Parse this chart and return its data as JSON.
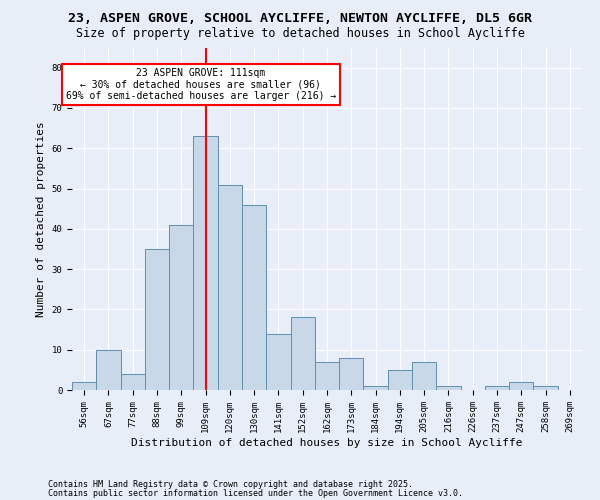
{
  "title_line1": "23, ASPEN GROVE, SCHOOL AYCLIFFE, NEWTON AYCLIFFE, DL5 6GR",
  "title_line2": "Size of property relative to detached houses in School Aycliffe",
  "xlabel": "Distribution of detached houses by size in School Aycliffe",
  "ylabel": "Number of detached properties",
  "categories": [
    "56sqm",
    "67sqm",
    "77sqm",
    "88sqm",
    "99sqm",
    "109sqm",
    "120sqm",
    "130sqm",
    "141sqm",
    "152sqm",
    "162sqm",
    "173sqm",
    "184sqm",
    "194sqm",
    "205sqm",
    "216sqm",
    "226sqm",
    "237sqm",
    "247sqm",
    "258sqm",
    "269sqm"
  ],
  "values": [
    2,
    10,
    4,
    35,
    41,
    63,
    51,
    46,
    14,
    18,
    7,
    8,
    1,
    5,
    7,
    1,
    0,
    1,
    2,
    1,
    0
  ],
  "bar_color": "#c8d8e8",
  "bar_edge_color": "#6090b0",
  "vline_x": 5,
  "vline_color": "red",
  "annotation_text": "23 ASPEN GROVE: 111sqm\n← 30% of detached houses are smaller (96)\n69% of semi-detached houses are larger (216) →",
  "annotation_box_color": "white",
  "annotation_box_edge_color": "red",
  "ylim": [
    0,
    85
  ],
  "yticks": [
    0,
    10,
    20,
    30,
    40,
    50,
    60,
    70,
    80
  ],
  "background_color": "#e8eef8",
  "footer_line1": "Contains HM Land Registry data © Crown copyright and database right 2025.",
  "footer_line2": "Contains public sector information licensed under the Open Government Licence v3.0.",
  "title_fontsize": 9.5,
  "subtitle_fontsize": 8.5,
  "tick_fontsize": 6.5,
  "label_fontsize": 8,
  "annotation_fontsize": 7,
  "footer_fontsize": 6
}
